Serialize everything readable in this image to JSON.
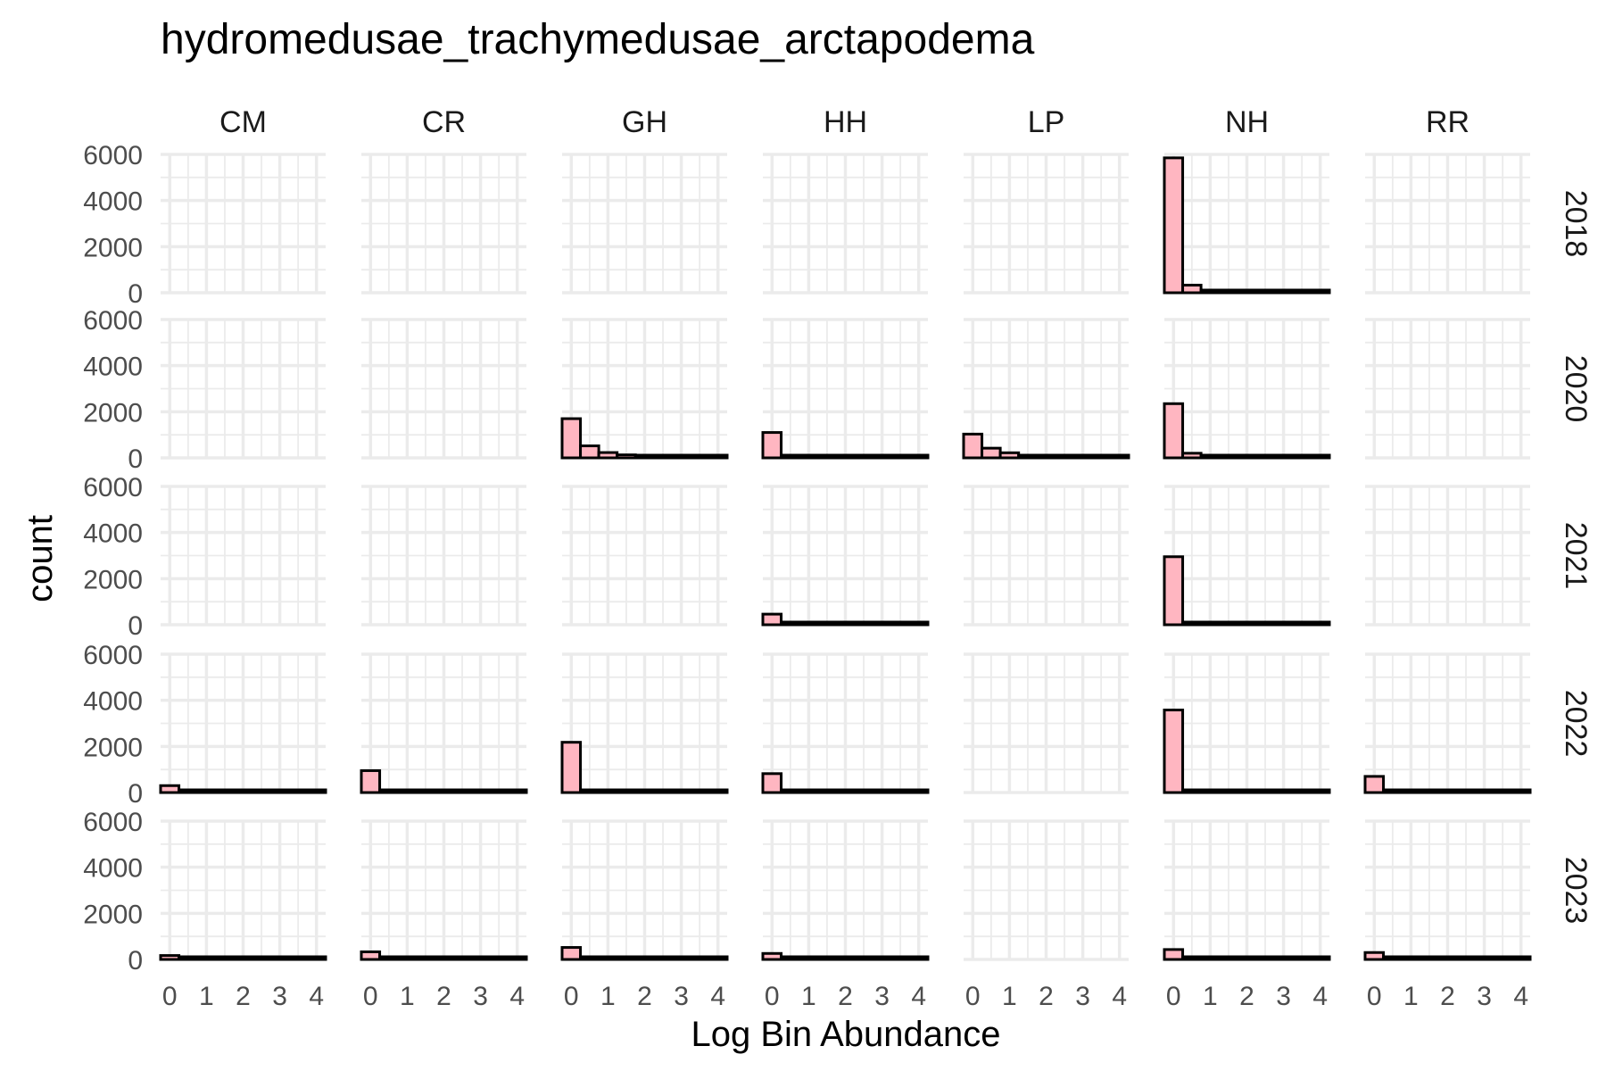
{
  "chart_data": {
    "type": "bar",
    "title": "hydromedusae_trachymedusae_arctapodema",
    "xlabel": "Log Bin Abundance",
    "ylabel": "count",
    "columns": [
      "CM",
      "CR",
      "GH",
      "HH",
      "LP",
      "NH",
      "RR"
    ],
    "rows": [
      "2018",
      "2020",
      "2021",
      "2022",
      "2023"
    ],
    "xlim": [
      -0.25,
      4.25
    ],
    "ylim": [
      0,
      6000
    ],
    "x_ticks": [
      "0",
      "1",
      "2",
      "3",
      "4"
    ],
    "y_ticks": [
      "0",
      "2000",
      "4000",
      "6000"
    ],
    "bin_width": 0.5,
    "bin_starts": [
      -0.25,
      0.25,
      0.75,
      1.25,
      1.75,
      2.25,
      2.75,
      3.25,
      3.75
    ],
    "fill_color": "#ffb6c1",
    "outline_color": "#000000",
    "grid": true,
    "panels": [
      {
        "column": "NH",
        "row": "2018",
        "values": [
          5850,
          330,
          70,
          30,
          15,
          8,
          5,
          3,
          2
        ]
      },
      {
        "column": "GH",
        "row": "2020",
        "values": [
          1700,
          520,
          230,
          130,
          80,
          40,
          20,
          10,
          5
        ]
      },
      {
        "column": "HH",
        "row": "2020",
        "values": [
          1100,
          110,
          30,
          10,
          5,
          3,
          2,
          0,
          0
        ]
      },
      {
        "column": "LP",
        "row": "2020",
        "values": [
          1030,
          420,
          220,
          100,
          50,
          25,
          10,
          5,
          2
        ]
      },
      {
        "column": "NH",
        "row": "2020",
        "values": [
          2350,
          200,
          50,
          30,
          20,
          10,
          5,
          3,
          2
        ]
      },
      {
        "column": "HH",
        "row": "2021",
        "values": [
          460,
          10,
          3,
          1,
          0,
          0,
          0,
          0,
          0
        ]
      },
      {
        "column": "NH",
        "row": "2021",
        "values": [
          2950,
          40,
          10,
          5,
          2,
          0,
          0,
          0,
          0
        ]
      },
      {
        "column": "CM",
        "row": "2022",
        "values": [
          300,
          5,
          2,
          0,
          0,
          0,
          0,
          0,
          0
        ]
      },
      {
        "column": "CR",
        "row": "2022",
        "values": [
          950,
          10,
          3,
          1,
          0,
          0,
          0,
          0,
          0
        ]
      },
      {
        "column": "GH",
        "row": "2022",
        "values": [
          2180,
          15,
          5,
          2,
          0,
          0,
          0,
          0,
          0
        ]
      },
      {
        "column": "HH",
        "row": "2022",
        "values": [
          820,
          10,
          3,
          1,
          0,
          0,
          0,
          0,
          0
        ]
      },
      {
        "column": "NH",
        "row": "2022",
        "values": [
          3580,
          20,
          5,
          2,
          0,
          0,
          0,
          0,
          0
        ]
      },
      {
        "column": "RR",
        "row": "2022",
        "values": [
          700,
          10,
          3,
          0,
          0,
          0,
          0,
          0,
          0
        ]
      },
      {
        "column": "CM",
        "row": "2023",
        "values": [
          170,
          5,
          2,
          0,
          0,
          0,
          0,
          0,
          0
        ]
      },
      {
        "column": "CR",
        "row": "2023",
        "values": [
          330,
          5,
          2,
          0,
          0,
          0,
          0,
          0,
          0
        ]
      },
      {
        "column": "GH",
        "row": "2023",
        "values": [
          520,
          10,
          3,
          0,
          0,
          0,
          0,
          0,
          0
        ]
      },
      {
        "column": "HH",
        "row": "2023",
        "values": [
          260,
          5,
          2,
          0,
          0,
          0,
          0,
          0,
          0
        ]
      },
      {
        "column": "NH",
        "row": "2023",
        "values": [
          430,
          10,
          3,
          0,
          0,
          0,
          0,
          0,
          0
        ]
      },
      {
        "column": "RR",
        "row": "2023",
        "values": [
          300,
          5,
          2,
          0,
          0,
          0,
          0,
          0,
          0
        ]
      }
    ]
  }
}
